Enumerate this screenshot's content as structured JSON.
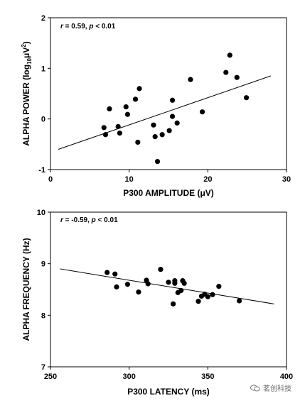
{
  "chart_data": [
    {
      "type": "scatter",
      "stat_r": "r",
      "stat_r_value": " = 0.59, ",
      "stat_p": "p",
      "stat_p_value": " < 0.01",
      "xlabel": "P300 AMPLITUDE (μV)",
      "ylabel_main": "ALPHA POWER (log",
      "ylabel_sub": "10",
      "ylabel_unit": "μV",
      "ylabel_sup": "2",
      "ylabel_end": ")",
      "xlim": [
        0,
        30
      ],
      "ylim": [
        -1,
        2
      ],
      "xticks": [
        0,
        10,
        20,
        30
      ],
      "yticks": [
        -1,
        0,
        1,
        2
      ],
      "grid": false,
      "fit_line": {
        "x": [
          1,
          28
        ],
        "y": [
          -0.6,
          0.85
        ]
      },
      "points": [
        {
          "x": 6.8,
          "y": -0.17
        },
        {
          "x": 7.0,
          "y": -0.31
        },
        {
          "x": 7.5,
          "y": 0.2
        },
        {
          "x": 8.6,
          "y": -0.15
        },
        {
          "x": 8.8,
          "y": -0.28
        },
        {
          "x": 9.6,
          "y": 0.24
        },
        {
          "x": 9.8,
          "y": 0.09
        },
        {
          "x": 10.8,
          "y": 0.39
        },
        {
          "x": 11.1,
          "y": -0.46
        },
        {
          "x": 11.3,
          "y": 0.6
        },
        {
          "x": 13.1,
          "y": -0.12
        },
        {
          "x": 13.3,
          "y": -0.35
        },
        {
          "x": 13.6,
          "y": -0.84
        },
        {
          "x": 14.2,
          "y": -0.31
        },
        {
          "x": 15.1,
          "y": -0.23
        },
        {
          "x": 15.5,
          "y": 0.37
        },
        {
          "x": 15.5,
          "y": 0.05
        },
        {
          "x": 16.1,
          "y": -0.08
        },
        {
          "x": 17.8,
          "y": 0.78
        },
        {
          "x": 19.3,
          "y": 0.14
        },
        {
          "x": 22.3,
          "y": 0.92
        },
        {
          "x": 22.8,
          "y": 1.26
        },
        {
          "x": 23.7,
          "y": 0.82
        },
        {
          "x": 24.9,
          "y": 0.42
        }
      ]
    },
    {
      "type": "scatter",
      "stat_r": "r",
      "stat_r_value": " = -0.59, ",
      "stat_p": "p",
      "stat_p_value": " < 0.01",
      "xlabel": "P300 LATENCY (ms)",
      "ylabel": "ALPHA FREQUENCY (Hz)",
      "xlim": [
        250,
        400
      ],
      "ylim": [
        7,
        10
      ],
      "xticks": [
        250,
        300,
        350,
        400
      ],
      "yticks": [
        7,
        8,
        9,
        10
      ],
      "grid": false,
      "fit_line": {
        "x": [
          256,
          392
        ],
        "y": [
          8.9,
          8.22
        ]
      },
      "points": [
        {
          "x": 286,
          "y": 8.83
        },
        {
          "x": 291,
          "y": 8.8
        },
        {
          "x": 292,
          "y": 8.55
        },
        {
          "x": 299,
          "y": 8.6
        },
        {
          "x": 306,
          "y": 8.45
        },
        {
          "x": 311,
          "y": 8.68
        },
        {
          "x": 312,
          "y": 8.61
        },
        {
          "x": 320,
          "y": 8.89
        },
        {
          "x": 325,
          "y": 8.64
        },
        {
          "x": 328,
          "y": 8.22
        },
        {
          "x": 329,
          "y": 8.67
        },
        {
          "x": 329,
          "y": 8.62
        },
        {
          "x": 331,
          "y": 8.44
        },
        {
          "x": 333,
          "y": 8.48
        },
        {
          "x": 334,
          "y": 8.67
        },
        {
          "x": 335,
          "y": 8.62
        },
        {
          "x": 344,
          "y": 8.27
        },
        {
          "x": 346,
          "y": 8.37
        },
        {
          "x": 348,
          "y": 8.41
        },
        {
          "x": 350,
          "y": 8.36
        },
        {
          "x": 353,
          "y": 8.4
        },
        {
          "x": 357,
          "y": 8.56
        },
        {
          "x": 370,
          "y": 8.28
        }
      ]
    }
  ],
  "watermark": {
    "text": "茗创科技"
  }
}
